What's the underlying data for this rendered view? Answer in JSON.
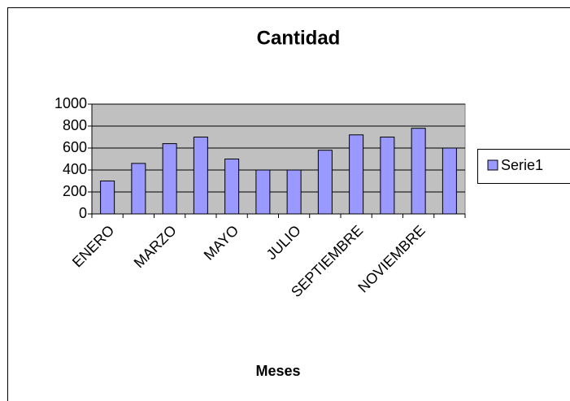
{
  "chart_data": {
    "type": "bar",
    "title": "Cantidad",
    "x_label": "Meses",
    "categories": [
      "ENERO",
      null,
      "MARZO",
      null,
      "MAYO",
      null,
      "JULIO",
      null,
      "SEPTIEMBRE",
      null,
      "NOVIEMBRE",
      null
    ],
    "series": [
      {
        "name": "Serie1",
        "color": "#9999ff",
        "values": [
          300,
          460,
          640,
          700,
          500,
          400,
          400,
          580,
          720,
          700,
          780,
          600
        ]
      }
    ],
    "ylim": [
      0,
      1000
    ],
    "yticks": [
      0,
      200,
      400,
      600,
      800,
      1000
    ],
    "grid": true,
    "legend": "right"
  }
}
